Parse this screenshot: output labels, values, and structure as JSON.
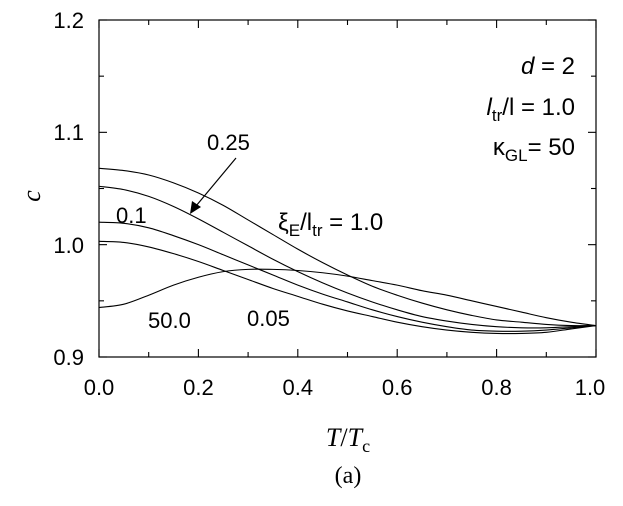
{
  "chart_data": {
    "type": "line",
    "xlabel_main": "T",
    "xlabel_sep": "/",
    "xlabel_var": "T",
    "xlabel_sub": "c",
    "ylabel": "c",
    "caption": "(a)",
    "xlim": [
      0.0,
      1.0
    ],
    "ylim": [
      0.9,
      1.2
    ],
    "xticks": [
      "0.0",
      "0.2",
      "0.4",
      "0.6",
      "0.8",
      "1.0"
    ],
    "yticks": [
      "0.9",
      "1.0",
      "1.1",
      "1.2"
    ],
    "params": {
      "d_sym": "d",
      "d_val": " = 2",
      "ltr_sym": "l",
      "ltr_sub": "tr",
      "ltr_rest": "/l = 1.0",
      "kappa_sym": "κ",
      "kappa_sub": "GL",
      "kappa_rest": "= 50"
    },
    "xi_label": {
      "sym": "ξ",
      "sub1": "E",
      "mid": "/l",
      "sub2": "tr",
      "rest": " = 1.0"
    },
    "annotations": {
      "a025": "0.25",
      "a01": "0.1",
      "a500": "50.0",
      "a005": "0.05"
    },
    "series": [
      {
        "name": "1.0",
        "x": [
          0.0,
          0.05,
          0.1,
          0.15,
          0.2,
          0.25,
          0.3,
          0.35,
          0.4,
          0.45,
          0.5,
          0.55,
          0.6,
          0.65,
          0.7,
          0.75,
          0.8,
          0.85,
          0.9,
          0.95,
          1.0
        ],
        "y": [
          1.068,
          1.066,
          1.062,
          1.055,
          1.046,
          1.035,
          1.022,
          1.009,
          0.996,
          0.984,
          0.973,
          0.963,
          0.955,
          0.948,
          0.942,
          0.937,
          0.933,
          0.931,
          0.929,
          0.928,
          0.928
        ]
      },
      {
        "name": "0.25",
        "x": [
          0.0,
          0.05,
          0.1,
          0.15,
          0.2,
          0.25,
          0.3,
          0.35,
          0.4,
          0.45,
          0.5,
          0.55,
          0.6,
          0.65,
          0.7,
          0.75,
          0.8,
          0.85,
          0.9,
          0.95,
          1.0
        ],
        "y": [
          1.052,
          1.049,
          1.043,
          1.034,
          1.023,
          1.011,
          0.999,
          0.987,
          0.976,
          0.966,
          0.957,
          0.949,
          0.942,
          0.936,
          0.932,
          0.929,
          0.927,
          0.926,
          0.926,
          0.927,
          0.928
        ]
      },
      {
        "name": "0.1",
        "x": [
          0.0,
          0.05,
          0.1,
          0.15,
          0.2,
          0.25,
          0.3,
          0.35,
          0.4,
          0.45,
          0.5,
          0.55,
          0.6,
          0.65,
          0.7,
          0.75,
          0.8,
          0.85,
          0.9,
          0.95,
          1.0
        ],
        "y": [
          1.02,
          1.019,
          1.015,
          1.008,
          1.0,
          0.991,
          0.982,
          0.973,
          0.964,
          0.956,
          0.949,
          0.942,
          0.936,
          0.931,
          0.927,
          0.924,
          0.923,
          0.923,
          0.924,
          0.926,
          0.928
        ]
      },
      {
        "name": "0.05",
        "x": [
          0.0,
          0.05,
          0.1,
          0.15,
          0.2,
          0.25,
          0.3,
          0.35,
          0.4,
          0.45,
          0.5,
          0.55,
          0.6,
          0.65,
          0.7,
          0.75,
          0.8,
          0.85,
          0.9,
          0.95,
          1.0
        ],
        "y": [
          1.003,
          1.002,
          0.998,
          0.992,
          0.985,
          0.977,
          0.969,
          0.961,
          0.954,
          0.947,
          0.941,
          0.936,
          0.931,
          0.927,
          0.924,
          0.922,
          0.921,
          0.921,
          0.922,
          0.925,
          0.928
        ]
      },
      {
        "name": "50.0",
        "x": [
          0.0,
          0.05,
          0.1,
          0.15,
          0.2,
          0.25,
          0.3,
          0.35,
          0.4,
          0.45,
          0.5,
          0.55,
          0.6,
          0.65,
          0.7,
          0.75,
          0.8,
          0.85,
          0.9,
          0.95,
          1.0
        ],
        "y": [
          0.944,
          0.947,
          0.955,
          0.964,
          0.971,
          0.976,
          0.978,
          0.978,
          0.977,
          0.975,
          0.972,
          0.968,
          0.964,
          0.959,
          0.955,
          0.95,
          0.945,
          0.94,
          0.935,
          0.931,
          0.928
        ]
      }
    ]
  }
}
